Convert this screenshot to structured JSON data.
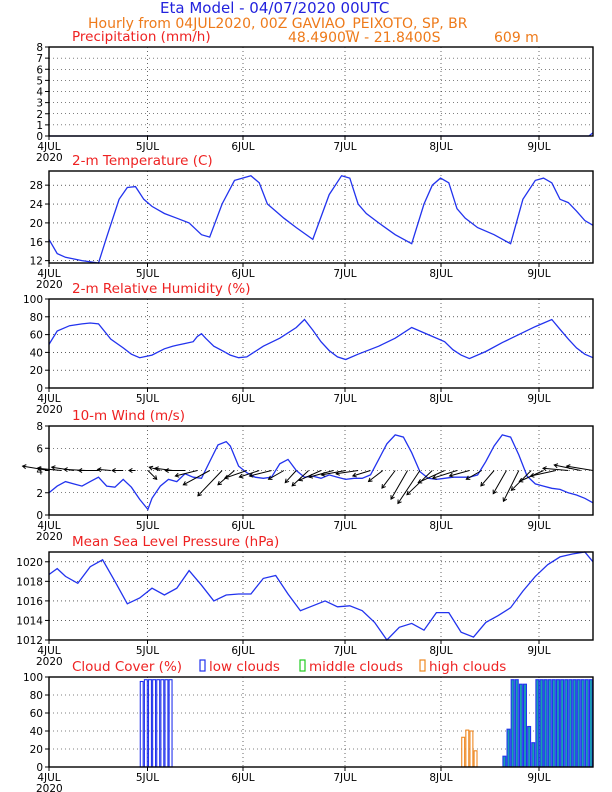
{
  "header": {
    "title": "Eta Model - 04/07/2020 00UTC",
    "subtitle": "Hourly from 04JUL2020, 00Z  GAVIAO_PEIXOTO, SP, BR",
    "location": "48.4900W - 21.8400S",
    "elevation": "609  m"
  },
  "colors": {
    "series": "#2233ee",
    "panel_title": "#ee2222",
    "header": "#2222dd",
    "subtitle": "#ee7a1a",
    "low": "#2233ee",
    "middle": "#22cc22",
    "high": "#ee8822",
    "teal": "#1a9fb0"
  },
  "x_axis": {
    "labels": [
      "4JUL",
      "5JUL",
      "6JUL",
      "7JUL",
      "8JUL",
      "9JUL"
    ],
    "year": "2020",
    "hours": 132
  },
  "chart_data": [
    {
      "id": "precip",
      "type": "line",
      "title": "Precipitation (mm/h)",
      "ylim": [
        0,
        8
      ],
      "yticks": [
        0,
        1,
        2,
        3,
        4,
        5,
        6,
        7,
        8
      ],
      "x": [
        0,
        131,
        132
      ],
      "values": [
        0,
        0,
        0.3
      ]
    },
    {
      "id": "temp",
      "type": "line",
      "title": "2-m Temperature (C)",
      "ylim": [
        11.5,
        31
      ],
      "yticks": [
        12,
        16,
        20,
        24,
        28
      ],
      "x": [
        0,
        2,
        4,
        8,
        12,
        14,
        17,
        19,
        21,
        23,
        25,
        28,
        31,
        34,
        37,
        39,
        42,
        45,
        49,
        51,
        53,
        55,
        57,
        60,
        64,
        68,
        71,
        73,
        75,
        77,
        80,
        84,
        88,
        91,
        93,
        95,
        97,
        99,
        101,
        104,
        108,
        112,
        115,
        118,
        120,
        122,
        124,
        126,
        128,
        130,
        132
      ],
      "values": [
        16.5,
        13.5,
        12.7,
        12,
        11.5,
        17,
        25,
        27.5,
        27.7,
        25,
        23.5,
        22,
        21,
        20,
        17.5,
        17,
        24,
        29,
        30,
        28.5,
        24,
        22.5,
        21,
        19,
        16.5,
        26,
        30,
        29.5,
        24,
        22,
        20,
        17.5,
        15.6,
        24,
        28,
        29.5,
        28.5,
        23,
        21,
        19,
        17.5,
        15.6,
        25,
        29,
        29.5,
        28.5,
        25,
        24.3,
        22.5,
        20.5,
        19.5
      ]
    },
    {
      "id": "rh",
      "type": "line",
      "title": "2-m Relative Humidity (%)",
      "ylim": [
        0,
        100
      ],
      "yticks": [
        0,
        20,
        40,
        60,
        80,
        100
      ],
      "x": [
        0,
        2,
        5,
        8,
        10,
        12,
        15,
        18,
        20,
        22,
        25,
        28,
        30,
        31,
        33,
        35,
        36,
        37,
        38,
        40,
        42,
        44,
        46,
        48,
        52,
        56,
        60,
        62,
        64,
        66,
        68,
        70,
        72,
        75,
        80,
        84,
        88,
        92,
        96,
        98,
        100,
        102,
        106,
        110,
        114,
        118,
        122,
        124,
        126,
        128,
        130,
        132
      ],
      "values": [
        49,
        64,
        70,
        72,
        73,
        72,
        55,
        45,
        38,
        34,
        37,
        44,
        47,
        48,
        50,
        52,
        58,
        61,
        56,
        47,
        42,
        37,
        34,
        35,
        47,
        56,
        68,
        77,
        65,
        52,
        42,
        35,
        32,
        38,
        47,
        56,
        68,
        60,
        52,
        43,
        37,
        33,
        41,
        51,
        60,
        69,
        77,
        66,
        55,
        45,
        38,
        34
      ]
    },
    {
      "id": "wind",
      "type": "line",
      "title": "10-m Wind (m/s)",
      "ylim": [
        0,
        8
      ],
      "yticks": [
        0,
        2,
        4,
        6,
        8
      ],
      "x": [
        0,
        2,
        4,
        6,
        8,
        10,
        12,
        14,
        16,
        18,
        20,
        22,
        24,
        25,
        27,
        29,
        31,
        33,
        35,
        37,
        39,
        41,
        43,
        44,
        46,
        48,
        50,
        52,
        54,
        56,
        58,
        60,
        62,
        64,
        66,
        68,
        70,
        72,
        74,
        76,
        78,
        80,
        82,
        84,
        86,
        88,
        90,
        92,
        94,
        96,
        98,
        100,
        102,
        104,
        106,
        108,
        110,
        112,
        114,
        116,
        118,
        120,
        122,
        124,
        126,
        128,
        130,
        132
      ],
      "values": [
        2,
        2.6,
        3,
        2.8,
        2.6,
        3,
        3.4,
        2.6,
        2.5,
        3.2,
        2.5,
        1.4,
        0.5,
        1.5,
        2.6,
        3.2,
        3,
        3.7,
        3.4,
        3.3,
        4.8,
        6.3,
        6.6,
        6.2,
        4.4,
        3.8,
        3.4,
        3.3,
        3.4,
        4.6,
        5,
        4,
        3.4,
        3.5,
        3.3,
        3.6,
        3.4,
        3.2,
        3.3,
        3.3,
        3.6,
        5,
        6.4,
        7.2,
        7,
        5.6,
        3.9,
        3.3,
        3.2,
        3.3,
        3.4,
        3.4,
        3.4,
        3.6,
        4.8,
        6.2,
        7.2,
        7,
        5.4,
        3.5,
        2.8,
        2.6,
        2.4,
        2.3,
        2,
        1.8,
        1.5,
        1.1
      ],
      "vectors": {
        "x": [
          0,
          3,
          6,
          9,
          12,
          15,
          18,
          21,
          24,
          27,
          30,
          33,
          36,
          39,
          42,
          45,
          48,
          51,
          54,
          57,
          60,
          63,
          66,
          69,
          72,
          75,
          78,
          81,
          84,
          87,
          90,
          93,
          96,
          99,
          102,
          105,
          108,
          111,
          114,
          117,
          120,
          123,
          126,
          129,
          132
        ],
        "u": [
          -2.4,
          -2.2,
          -2,
          -2,
          -1.8,
          -1.2,
          -1,
          -0.6,
          0.8,
          -1,
          -1.6,
          -1.8,
          -2,
          -2.4,
          -2.2,
          -1.5,
          -2,
          -1.8,
          -2,
          -1.4,
          -1,
          -1.5,
          -2,
          -2.2,
          -2.2,
          -2,
          -1.6,
          -1.3,
          -1.2,
          -1.5,
          -2,
          -2.3,
          -2.4,
          -2.2,
          -1.8,
          -1.4,
          -1.2,
          -1.2,
          -1.4,
          -1.8,
          -2.2,
          -2.3,
          -2.3,
          -2.4,
          -2.4
        ],
        "v": [
          0.4,
          0.2,
          0.3,
          0.1,
          0,
          0.1,
          0,
          0,
          -0.8,
          0.3,
          0.2,
          0,
          -0.5,
          -1.3,
          -2.3,
          -1.3,
          -0.7,
          -0.6,
          -0.5,
          -0.8,
          -1.1,
          -1.4,
          -0.9,
          -0.6,
          -0.4,
          -0.3,
          -0.5,
          -1,
          -1.6,
          -2.6,
          -3,
          -2.2,
          -1.1,
          -0.7,
          -0.5,
          -0.8,
          -1.4,
          -2.1,
          -2.8,
          -1.8,
          -1,
          -0.5,
          0.2,
          0.5,
          0.4
        ]
      }
    },
    {
      "id": "mslp",
      "type": "line",
      "title": "Mean Sea Level Pressure (hPa)",
      "ylim": [
        1012,
        1021
      ],
      "yticks": [
        1012,
        1014,
        1016,
        1018,
        1020
      ],
      "x": [
        0,
        2,
        4,
        7,
        10,
        13,
        16,
        19,
        22,
        25,
        28,
        31,
        34,
        37,
        40,
        43,
        46,
        49,
        52,
        55,
        58,
        61,
        64,
        67,
        70,
        73,
        76,
        79,
        82,
        85,
        88,
        91,
        94,
        97,
        100,
        103,
        106,
        109,
        112,
        115,
        118,
        121,
        124,
        127,
        130,
        132
      ],
      "values": [
        1018.7,
        1019.3,
        1018.5,
        1017.8,
        1019.5,
        1020.2,
        1018,
        1015.7,
        1016.3,
        1017.3,
        1016.6,
        1017.3,
        1019.1,
        1017.6,
        1016,
        1016.6,
        1016.7,
        1016.7,
        1018.3,
        1018.6,
        1016.7,
        1015,
        1015.5,
        1016,
        1015.4,
        1015.5,
        1015,
        1013.8,
        1012,
        1013.3,
        1013.7,
        1013,
        1014.8,
        1014.8,
        1012.8,
        1012.3,
        1013.8,
        1014.5,
        1015.3,
        1017,
        1018.5,
        1019.7,
        1020.5,
        1020.8,
        1021,
        1020
      ]
    },
    {
      "id": "cloud",
      "type": "bar",
      "title": "Cloud Cover (%)",
      "legend": [
        "low clouds",
        "middle clouds",
        "high clouds"
      ],
      "ylim": [
        0,
        100
      ],
      "yticks": [
        0,
        20,
        40,
        60,
        80,
        100
      ],
      "low": {
        "x": [
          22,
          23,
          24,
          25,
          26,
          27,
          28,
          29
        ],
        "values": [
          95,
          97,
          97,
          97,
          97,
          97,
          97,
          97
        ]
      },
      "low_late": {
        "x": [
          110,
          111,
          112,
          113,
          114,
          115,
          116,
          117,
          118,
          119,
          120,
          121,
          122,
          123,
          124,
          125,
          126,
          127,
          128,
          129,
          130,
          131
        ],
        "values": [
          12,
          42,
          97,
          97,
          92,
          92,
          45,
          27,
          97,
          97,
          97,
          97,
          97,
          97,
          97,
          97,
          97,
          97,
          97,
          97,
          97,
          97
        ]
      },
      "high": {
        "x": [
          100,
          101,
          102,
          103
        ],
        "values": [
          33,
          41,
          40,
          18
        ]
      }
    }
  ]
}
